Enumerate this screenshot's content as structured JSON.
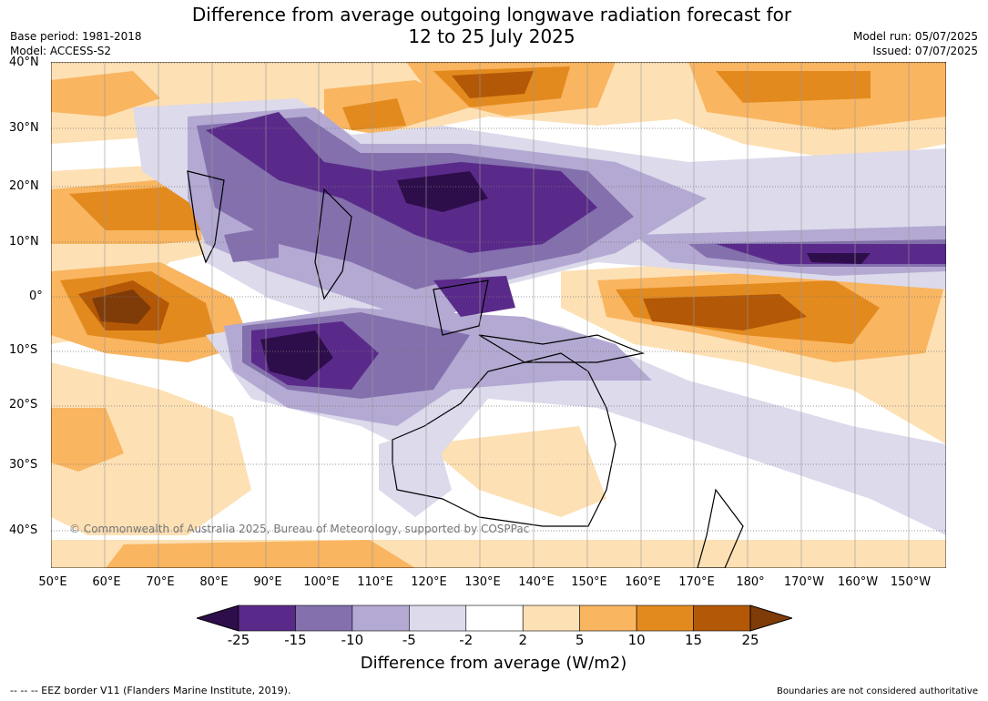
{
  "title_line1": "Difference from average outgoing longwave radiation forecast for",
  "title_line2": "12 to 25 July 2025",
  "base_period": "Base period: 1981-2018",
  "model": "Model: ACCESS-S2",
  "model_run": "Model run: 05/07/2025",
  "issued": "Issued: 07/07/2025",
  "lat_labels": [
    "40°N",
    "30°N",
    "20°N",
    "10°N",
    "0°",
    "10°S",
    "20°S",
    "30°S",
    "40°S"
  ],
  "lon_labels": [
    "50°E",
    "60°E",
    "70°E",
    "80°E",
    "90°E",
    "100°E",
    "110°E",
    "120°E",
    "130°E",
    "140°E",
    "150°E",
    "160°E",
    "170°E",
    "180°",
    "170°W",
    "160°W",
    "150°W"
  ],
  "copyright": "© Commonwealth of Australia 2025, Bureau of Meteorology, supported by COSPPac",
  "colorbar": {
    "ticks": [
      "-25",
      "-15",
      "-10",
      "-5",
      "-2",
      "2",
      "5",
      "10",
      "15",
      "25"
    ],
    "colors": [
      "#2e0e4a",
      "#5a2a8a",
      "#8370ad",
      "#b3a9d2",
      "#dcdaeb",
      "#ffffff",
      "#fde0b4",
      "#f9b560",
      "#e38a1e",
      "#b35806",
      "#7f3b08"
    ],
    "label": "Difference from average (W/m2)"
  },
  "footnote_left": "--  --  -- EEZ border V11 (Flanders Marine Institute, 2019).",
  "footnote_right": "Boundaries are not considered authoritative"
}
